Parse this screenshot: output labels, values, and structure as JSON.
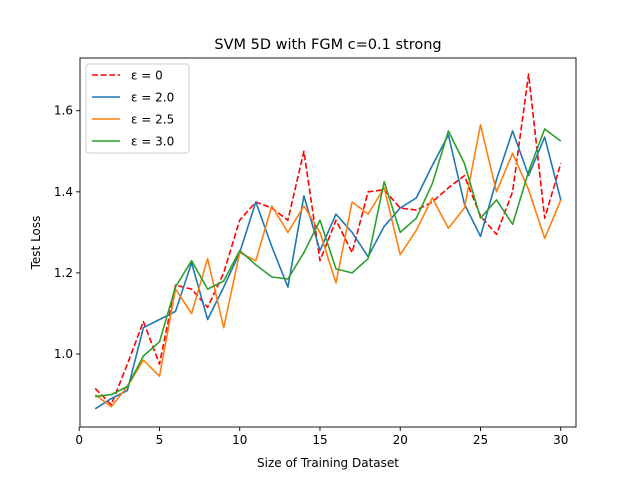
{
  "chart_data": {
    "type": "line",
    "title": "SVM 5D with FGM c=0.1 strong",
    "xlabel": "Size of Training Dataset",
    "ylabel": "Test Loss",
    "xlim": [
      0.05,
      30.95
    ],
    "ylim": [
      0.82,
      1.73
    ],
    "xticks": [
      0,
      5,
      10,
      15,
      20,
      25,
      30
    ],
    "yticks": [
      1.0,
      1.2,
      1.4,
      1.6
    ],
    "ytick_labels": [
      "1.0",
      "1.2",
      "1.4",
      "1.6"
    ],
    "legend_position": "top-left",
    "x": [
      1,
      2,
      3,
      4,
      5,
      6,
      7,
      8,
      9,
      10,
      11,
      12,
      13,
      14,
      15,
      16,
      17,
      18,
      19,
      20,
      21,
      22,
      23,
      24,
      25,
      26,
      27,
      28,
      29,
      30
    ],
    "series": [
      {
        "name": "ε = 0",
        "color": "#ff0000",
        "dash": "dashed",
        "values": [
          0.915,
          0.875,
          0.975,
          1.08,
          0.975,
          1.17,
          1.16,
          1.115,
          1.2,
          1.33,
          1.375,
          1.36,
          1.33,
          1.5,
          1.23,
          1.33,
          1.25,
          1.4,
          1.405,
          1.36,
          1.355,
          1.375,
          1.41,
          1.44,
          1.34,
          1.295,
          1.4,
          1.69,
          1.335,
          1.47
        ]
      },
      {
        "name": "ε = 2.0",
        "color": "#1f77b4",
        "dash": "solid",
        "values": [
          0.865,
          0.89,
          0.91,
          1.065,
          1.085,
          1.105,
          1.225,
          1.085,
          1.165,
          1.25,
          1.375,
          1.265,
          1.165,
          1.39,
          1.255,
          1.345,
          1.3,
          1.24,
          1.315,
          1.36,
          1.385,
          1.465,
          1.54,
          1.37,
          1.29,
          1.43,
          1.55,
          1.44,
          1.535,
          1.38
        ]
      },
      {
        "name": "ε = 2.5",
        "color": "#ff7f0e",
        "dash": "solid",
        "values": [
          0.9,
          0.87,
          0.92,
          0.985,
          0.945,
          1.16,
          1.1,
          1.235,
          1.065,
          1.25,
          1.23,
          1.365,
          1.3,
          1.365,
          1.3,
          1.175,
          1.375,
          1.345,
          1.41,
          1.245,
          1.305,
          1.385,
          1.31,
          1.36,
          1.565,
          1.4,
          1.495,
          1.405,
          1.285,
          1.38
        ]
      },
      {
        "name": "ε = 3.0",
        "color": "#2ca02c",
        "dash": "solid",
        "values": [
          0.895,
          0.9,
          0.92,
          0.995,
          1.03,
          1.165,
          1.23,
          1.16,
          1.18,
          1.255,
          1.22,
          1.19,
          1.185,
          1.25,
          1.33,
          1.21,
          1.2,
          1.235,
          1.425,
          1.3,
          1.335,
          1.42,
          1.55,
          1.47,
          1.335,
          1.38,
          1.32,
          1.45,
          1.555,
          1.525
        ]
      }
    ]
  }
}
